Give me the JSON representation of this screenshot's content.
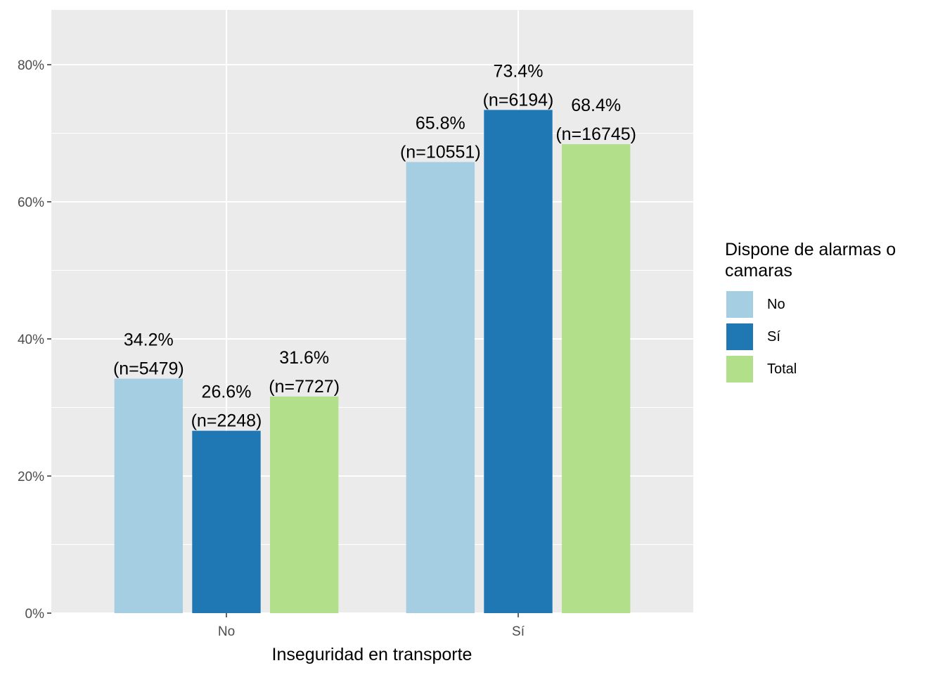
{
  "chart_data": {
    "type": "bar",
    "xlabel": "Inseguridad en transporte",
    "ylabel": "",
    "categories": [
      "No",
      "Sí"
    ],
    "ylim": [
      0,
      0.88
    ],
    "yticks": [
      0,
      0.2,
      0.4,
      0.6,
      0.8
    ],
    "ytick_labels": [
      "0%",
      "20%",
      "40%",
      "60%",
      "80%"
    ],
    "grid": true,
    "legend": {
      "title": "Dispone de alarmas o camaras",
      "placement": "right"
    },
    "series": [
      {
        "name": "No",
        "color": "#a6cee3",
        "values": [
          0.342,
          0.658
        ],
        "labels": [
          [
            "34.2%",
            "(n=5479)"
          ],
          [
            "65.8%",
            "(n=10551)"
          ]
        ]
      },
      {
        "name": "Sí",
        "color": "#1f78b4",
        "values": [
          0.266,
          0.734
        ],
        "labels": [
          [
            "26.6%",
            "(n=2248)"
          ],
          [
            "73.4%",
            "(n=6194)"
          ]
        ]
      },
      {
        "name": "Total",
        "color": "#b2df8a",
        "values": [
          0.316,
          0.684
        ],
        "labels": [
          [
            "31.6%",
            "(n=7727)"
          ],
          [
            "68.4%",
            "(n=16745)"
          ]
        ]
      }
    ]
  }
}
